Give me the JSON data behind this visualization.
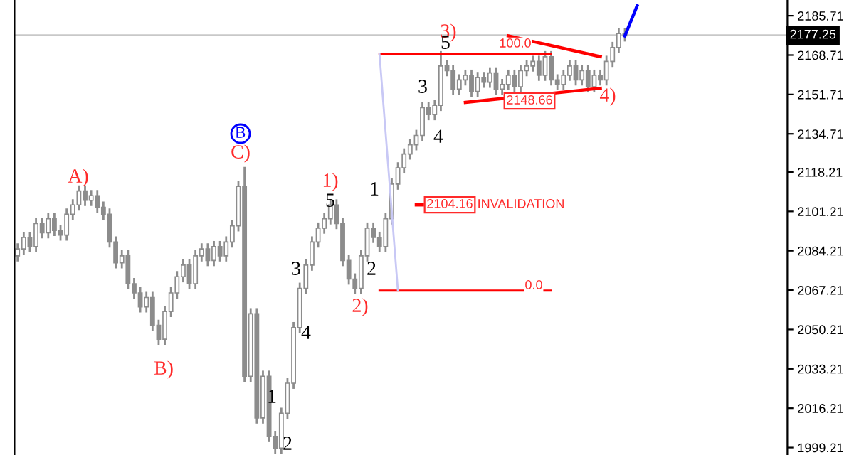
{
  "chart_data": {
    "type": "candlestick",
    "color": "#8c8c8c",
    "categories": [
      null,
      null,
      null,
      null,
      null,
      null,
      null,
      null,
      null,
      null,
      null,
      null,
      null,
      null,
      null,
      null,
      null,
      null,
      null,
      null,
      null,
      null,
      null,
      null,
      null,
      null,
      null,
      null,
      null,
      null,
      null,
      null,
      null,
      null,
      null,
      null,
      null,
      null,
      null,
      null,
      null,
      null,
      null,
      null,
      null,
      null,
      null,
      null,
      null,
      null,
      null,
      null,
      null,
      null,
      null,
      null,
      null,
      null,
      null,
      null,
      null,
      null,
      null,
      null,
      null,
      null,
      null,
      null,
      null,
      null,
      null,
      null,
      null,
      null,
      null,
      null,
      null,
      null,
      null,
      null,
      null,
      null,
      null,
      null,
      null,
      null,
      null,
      null,
      null,
      null,
      null,
      null,
      null,
      null,
      null,
      null,
      null,
      null,
      null,
      null,
      null,
      null,
      null,
      null,
      null,
      null,
      null,
      null,
      null,
      null,
      null,
      null,
      null,
      null,
      null,
      null,
      null,
      null,
      null,
      null,
      null,
      null,
      null,
      null,
      null,
      null
    ],
    "ohlc": [
      [
        2082,
        2087,
        2080,
        2085
      ],
      [
        2085,
        2092,
        2083,
        2090
      ],
      [
        2090,
        2092,
        2084,
        2086
      ],
      [
        2086,
        2098,
        2084,
        2096
      ],
      [
        2096,
        2098,
        2090,
        2092
      ],
      [
        2092,
        2100,
        2090,
        2098
      ],
      [
        2098,
        2100,
        2091,
        2093
      ],
      [
        2093,
        2095,
        2089,
        2091
      ],
      [
        2091,
        2102,
        2089,
        2100
      ],
      [
        2100,
        2106,
        2098,
        2104
      ],
      [
        2104,
        2112,
        2102,
        2110
      ],
      [
        2110,
        2112,
        2104,
        2106
      ],
      [
        2106,
        2110,
        2104,
        2108
      ],
      [
        2108,
        2110,
        2101,
        2103
      ],
      [
        2103,
        2105,
        2098,
        2100
      ],
      [
        2100,
        2102,
        2086,
        2088
      ],
      [
        2088,
        2090,
        2077,
        2079
      ],
      [
        2079,
        2084,
        2077,
        2082
      ],
      [
        2082,
        2084,
        2068,
        2070
      ],
      [
        2070,
        2072,
        2064,
        2066
      ],
      [
        2066,
        2068,
        2058,
        2060
      ],
      [
        2060,
        2066,
        2058,
        2064
      ],
      [
        2064,
        2066,
        2050,
        2052
      ],
      [
        2052,
        2054,
        2044,
        2046
      ],
      [
        2046,
        2060,
        2044,
        2058
      ],
      [
        2058,
        2068,
        2056,
        2066
      ],
      [
        2066,
        2075,
        2064,
        2073
      ],
      [
        2073,
        2080,
        2071,
        2078
      ],
      [
        2078,
        2080,
        2068,
        2070
      ],
      [
        2070,
        2084,
        2068,
        2082
      ],
      [
        2082,
        2087,
        2080,
        2085
      ],
      [
        2085,
        2087,
        2078,
        2080
      ],
      [
        2080,
        2088,
        2078,
        2086
      ],
      [
        2086,
        2088,
        2080,
        2082
      ],
      [
        2082,
        2090,
        2080,
        2088
      ],
      [
        2088,
        2097,
        2086,
        2095
      ],
      [
        2095,
        2114,
        2093,
        2112
      ],
      [
        2112,
        2120,
        2028,
        2030
      ],
      [
        2030,
        2059,
        2028,
        2057
      ],
      [
        2057,
        2059,
        2010,
        2012
      ],
      [
        2012,
        2032,
        2010,
        2030
      ],
      [
        2030,
        2032,
        2002,
        2004
      ],
      [
        2004,
        2006,
        1997,
        1999
      ],
      [
        1999,
        2016,
        1997,
        2014
      ],
      [
        2014,
        2029,
        2012,
        2027
      ],
      [
        2027,
        2053,
        2025,
        2051
      ],
      [
        2051,
        2070,
        2049,
        2068
      ],
      [
        2068,
        2080,
        2066,
        2078
      ],
      [
        2078,
        2090,
        2076,
        2088
      ],
      [
        2088,
        2096,
        2086,
        2094
      ],
      [
        2094,
        2100,
        2092,
        2098
      ],
      [
        2098,
        2106,
        2096,
        2104
      ],
      [
        2104,
        2106,
        2094,
        2096
      ],
      [
        2096,
        2098,
        2078,
        2080
      ],
      [
        2080,
        2082,
        2070,
        2072
      ],
      [
        2072,
        2074,
        2066,
        2068
      ],
      [
        2068,
        2084,
        2066,
        2082
      ],
      [
        2082,
        2096,
        2080,
        2094
      ],
      [
        2094,
        2096,
        2088,
        2090
      ],
      [
        2090,
        2092,
        2084,
        2086
      ],
      [
        2086,
        2100,
        2084,
        2098
      ],
      [
        2098,
        2115,
        2096,
        2113
      ],
      [
        2113,
        2122,
        2111,
        2120
      ],
      [
        2120,
        2128,
        2118,
        2126
      ],
      [
        2126,
        2132,
        2124,
        2130
      ],
      [
        2130,
        2136,
        2128,
        2134
      ],
      [
        2134,
        2148,
        2132,
        2146
      ],
      [
        2146,
        2148,
        2141,
        2143
      ],
      [
        2143,
        2149,
        2141,
        2147
      ],
      [
        2147,
        2170,
        2145,
        2164
      ],
      [
        2164,
        2166,
        2160,
        2162
      ],
      [
        2162,
        2164,
        2152,
        2154
      ],
      [
        2154,
        2160,
        2152,
        2158
      ],
      [
        2158,
        2162,
        2156,
        2160
      ],
      [
        2160,
        2162,
        2151,
        2153
      ],
      [
        2153,
        2161,
        2151,
        2159
      ],
      [
        2159,
        2161,
        2155,
        2157
      ],
      [
        2157,
        2163,
        2155,
        2161
      ],
      [
        2161,
        2163,
        2152,
        2154
      ],
      [
        2154,
        2158,
        2152,
        2156
      ],
      [
        2156,
        2162,
        2154,
        2160
      ],
      [
        2160,
        2162,
        2153,
        2155
      ],
      [
        2155,
        2164,
        2153,
        2162
      ],
      [
        2162,
        2166,
        2160,
        2164
      ],
      [
        2164,
        2168,
        2162,
        2166
      ],
      [
        2166,
        2168,
        2158,
        2160
      ],
      [
        2160,
        2170,
        2158,
        2168
      ],
      [
        2168,
        2170,
        2156,
        2158
      ],
      [
        2158,
        2160,
        2154,
        2156
      ],
      [
        2156,
        2162,
        2154,
        2160
      ],
      [
        2160,
        2166,
        2158,
        2164
      ],
      [
        2164,
        2166,
        2156,
        2158
      ],
      [
        2158,
        2164,
        2156,
        2162
      ],
      [
        2162,
        2164,
        2153,
        2155
      ],
      [
        2155,
        2162,
        2153,
        2160
      ],
      [
        2160,
        2162,
        2156,
        2158
      ],
      [
        2158,
        2168,
        2156,
        2166
      ],
      [
        2166,
        2174,
        2164,
        2172
      ],
      [
        2172,
        2180,
        2170,
        2178
      ],
      [
        2178,
        2180,
        2175,
        2177
      ],
      null,
      null,
      null,
      null,
      null,
      null,
      null,
      null,
      null,
      null,
      null,
      null,
      null,
      null,
      null,
      null,
      null,
      null,
      null,
      null,
      null,
      null,
      null,
      null,
      null,
      null
    ],
    "series": [
      {
        "type": "line",
        "color": "#ff0000",
        "values": [
          null,
          null,
          null,
          null,
          null,
          null,
          null,
          null,
          null,
          null,
          null,
          null,
          null,
          null,
          null,
          null,
          null,
          null,
          null,
          null,
          null,
          null,
          null,
          null,
          null,
          null,
          null,
          null,
          null,
          null,
          null,
          null,
          null,
          null,
          null,
          null,
          null,
          null,
          null,
          null,
          null,
          null,
          null,
          null,
          null,
          null,
          null,
          null,
          null,
          null,
          null,
          null,
          null,
          null,
          null,
          null,
          null,
          null,
          null,
          2169.2,
          null,
          null,
          null,
          null,
          null,
          null,
          null,
          null,
          null,
          null,
          null,
          null,
          null,
          null,
          null,
          null,
          null,
          null,
          null,
          null,
          null,
          null,
          null,
          null,
          null,
          null,
          null,
          2169.2,
          null,
          null,
          null,
          null,
          null,
          null,
          null,
          null,
          null,
          null,
          null,
          null,
          null,
          null,
          null,
          null,
          null,
          null,
          null,
          null,
          null,
          null,
          null,
          null,
          null,
          null,
          null,
          null,
          null,
          null,
          null,
          null,
          null,
          null,
          null,
          null,
          null,
          null
        ]
      },
      {
        "type": "line",
        "color": "#ff0000",
        "values": [
          null,
          null,
          null,
          null,
          null,
          null,
          null,
          null,
          null,
          null,
          null,
          null,
          null,
          null,
          null,
          null,
          null,
          null,
          null,
          null,
          null,
          null,
          null,
          null,
          null,
          null,
          null,
          null,
          null,
          null,
          null,
          null,
          null,
          null,
          null,
          null,
          null,
          null,
          null,
          null,
          null,
          null,
          null,
          null,
          null,
          null,
          null,
          null,
          null,
          null,
          null,
          null,
          null,
          null,
          null,
          null,
          null,
          null,
          null,
          2067,
          null,
          null,
          null,
          null,
          null,
          null,
          null,
          null,
          null,
          null,
          null,
          null,
          null,
          null,
          null,
          null,
          null,
          null,
          null,
          null,
          null,
          null,
          null,
          null,
          null,
          null,
          null,
          2067,
          null,
          null,
          null,
          null,
          null,
          null,
          null,
          null,
          null,
          null,
          null,
          null,
          null,
          null,
          null,
          null,
          null,
          null,
          null,
          null,
          null,
          null,
          null,
          null,
          null,
          null,
          null,
          null,
          null,
          null,
          null,
          null,
          null,
          null,
          null,
          null,
          null,
          null
        ]
      },
      {
        "type": "line",
        "color": "#c8c8f5",
        "values": [
          null,
          null,
          null,
          null,
          null,
          null,
          null,
          null,
          null,
          null,
          null,
          null,
          null,
          null,
          null,
          null,
          null,
          null,
          null,
          null,
          null,
          null,
          null,
          null,
          null,
          null,
          null,
          null,
          null,
          null,
          null,
          null,
          null,
          null,
          null,
          null,
          null,
          null,
          null,
          null,
          null,
          null,
          null,
          null,
          null,
          null,
          null,
          null,
          null,
          null,
          null,
          null,
          null,
          null,
          null,
          null,
          null,
          null,
          null,
          2169.2,
          null,
          null,
          2067,
          null,
          null,
          null,
          null,
          null,
          null,
          null,
          null,
          null,
          null,
          null,
          null,
          null,
          null,
          null,
          null,
          null,
          null,
          null,
          null,
          null,
          null,
          null,
          null,
          null,
          null,
          null,
          null,
          null,
          null,
          null,
          null,
          null,
          null,
          null,
          null,
          null,
          null,
          null,
          null,
          null,
          null,
          null,
          null,
          null,
          null,
          null,
          null,
          null,
          null,
          null,
          null,
          null,
          null,
          null,
          null,
          null,
          null,
          null,
          null,
          null,
          null,
          null
        ]
      },
      {
        "type": "line",
        "color": "#ff0000",
        "values": [
          null,
          null,
          null,
          null,
          null,
          null,
          null,
          null,
          null,
          null,
          null,
          null,
          null,
          null,
          null,
          null,
          null,
          null,
          null,
          null,
          null,
          null,
          null,
          null,
          null,
          null,
          null,
          null,
          null,
          null,
          null,
          null,
          null,
          null,
          null,
          null,
          null,
          null,
          null,
          null,
          null,
          null,
          null,
          null,
          null,
          null,
          null,
          null,
          null,
          null,
          null,
          null,
          null,
          null,
          null,
          null,
          null,
          null,
          null,
          null,
          null,
          null,
          null,
          null,
          null,
          null,
          null,
          null,
          null,
          null,
          null,
          null,
          null,
          null,
          null,
          null,
          null,
          null,
          null,
          null,
          2177,
          null,
          null,
          null,
          null,
          null,
          null,
          null,
          null,
          null,
          null,
          null,
          null,
          null,
          null,
          2168,
          null,
          null,
          null,
          null,
          null,
          null,
          null,
          null,
          null,
          null,
          null,
          null,
          null,
          null,
          null,
          null,
          null,
          null,
          null,
          null,
          null,
          null,
          null,
          null,
          null,
          null,
          null,
          null,
          null,
          null
        ]
      },
      {
        "type": "line",
        "color": "#ff0000",
        "values": [
          null,
          null,
          null,
          null,
          null,
          null,
          null,
          null,
          null,
          null,
          null,
          null,
          null,
          null,
          null,
          null,
          null,
          null,
          null,
          null,
          null,
          null,
          null,
          null,
          null,
          null,
          null,
          null,
          null,
          null,
          null,
          null,
          null,
          null,
          null,
          null,
          null,
          null,
          null,
          null,
          null,
          null,
          null,
          null,
          null,
          null,
          null,
          null,
          null,
          null,
          null,
          null,
          null,
          null,
          null,
          null,
          null,
          null,
          null,
          null,
          null,
          null,
          null,
          null,
          null,
          null,
          null,
          null,
          null,
          null,
          null,
          null,
          null,
          2148.3,
          null,
          null,
          null,
          null,
          null,
          null,
          null,
          null,
          null,
          null,
          null,
          null,
          null,
          null,
          null,
          null,
          null,
          null,
          null,
          null,
          null,
          2154.4,
          null,
          null,
          null,
          null,
          null,
          null,
          null,
          null,
          null,
          null,
          null,
          null,
          null,
          null,
          null,
          null,
          null,
          null,
          null,
          null,
          null,
          null,
          null,
          null,
          null,
          null,
          null,
          null,
          null,
          null
        ]
      },
      {
        "type": "line",
        "color": "#ff0000",
        "values": [
          null,
          null,
          null,
          null,
          null,
          null,
          null,
          null,
          null,
          null,
          null,
          null,
          null,
          null,
          null,
          null,
          null,
          null,
          null,
          null,
          null,
          null,
          null,
          null,
          null,
          null,
          null,
          null,
          null,
          null,
          null,
          null,
          null,
          null,
          null,
          null,
          null,
          null,
          null,
          null,
          null,
          null,
          null,
          null,
          null,
          null,
          null,
          null,
          null,
          null,
          null,
          null,
          null,
          null,
          null,
          null,
          null,
          null,
          null,
          null,
          null,
          null,
          null,
          null,
          null,
          2104,
          2104,
          null,
          null,
          null,
          null,
          null,
          null,
          null,
          null,
          null,
          null,
          null,
          null,
          null,
          null,
          null,
          null,
          null,
          null,
          null,
          null,
          null,
          null,
          null,
          null,
          null,
          null,
          null,
          null,
          null,
          null,
          null,
          null,
          null,
          null,
          null,
          null,
          null,
          null,
          null,
          null,
          null,
          null,
          null,
          null,
          null,
          null,
          null,
          null,
          null,
          null,
          null,
          null,
          null,
          null,
          null,
          null,
          null,
          null,
          null
        ]
      },
      {
        "type": "line",
        "color": "#0000ff",
        "values": [
          null,
          null,
          null,
          null,
          null,
          null,
          null,
          null,
          null,
          null,
          null,
          null,
          null,
          null,
          null,
          null,
          null,
          null,
          null,
          null,
          null,
          null,
          null,
          null,
          null,
          null,
          null,
          null,
          null,
          null,
          null,
          null,
          null,
          null,
          null,
          null,
          null,
          null,
          null,
          null,
          null,
          null,
          null,
          null,
          null,
          null,
          null,
          null,
          null,
          null,
          null,
          null,
          null,
          null,
          null,
          null,
          null,
          null,
          null,
          null,
          null,
          null,
          null,
          null,
          null,
          null,
          null,
          null,
          null,
          null,
          null,
          null,
          null,
          null,
          null,
          null,
          null,
          null,
          null,
          null,
          null,
          null,
          null,
          null,
          null,
          null,
          null,
          null,
          null,
          null,
          null,
          null,
          null,
          null,
          null,
          null,
          null,
          null,
          null,
          2177,
          null,
          2190,
          null,
          null,
          null,
          null,
          null,
          null,
          null,
          null,
          null,
          null,
          null,
          null,
          null,
          null,
          null,
          null,
          null,
          null,
          null,
          null,
          null,
          null,
          null,
          null
        ]
      }
    ],
    "annotations": [
      "A)",
      "B)",
      "C)",
      "B",
      "1)",
      "2)",
      "3)",
      "4)",
      "1",
      "2",
      "3",
      "4",
      "5",
      "2",
      "1",
      "3",
      "4",
      "5",
      "2104.16",
      "INVALIDATION",
      "2148.66",
      "100.0",
      "0.0"
    ],
    "ref_lines": [
      {
        "axis": "y",
        "value": 2177.25,
        "label": "2177.25",
        "color": "#c8c8c8"
      }
    ],
    "ylim": [
      1996,
      2192.5
    ],
    "yticks": [
      1999.21,
      2016.21,
      2033.21,
      2050.21,
      2067.21,
      2084.21,
      2101.21,
      2118.21,
      2134.71,
      2151.71,
      2168.71,
      2185.71
    ],
    "tick_labels": "y",
    "grid": false
  }
}
